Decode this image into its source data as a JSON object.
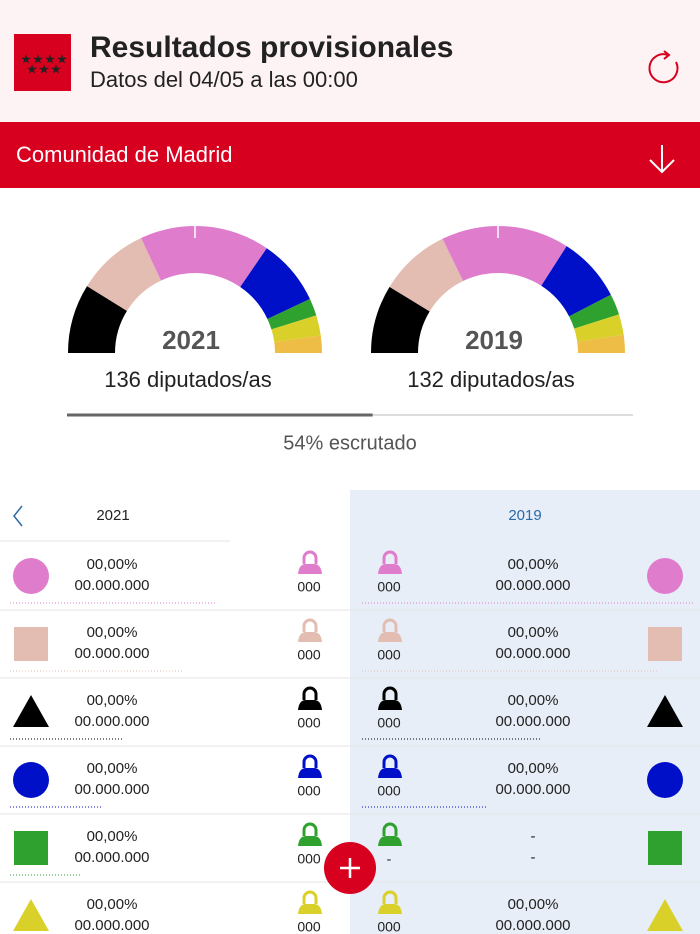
{
  "header": {
    "title": "Resultados provisionales",
    "subtitle": "Datos del 04/05 a las 00:00"
  },
  "region": "Comunidad de Madrid",
  "gauges": [
    {
      "year": "2021",
      "total_label": "136 diputados/as",
      "total": 136,
      "segments": [
        {
          "color": "#000000",
          "value": 24
        },
        {
          "color": "#e3bdb2",
          "value": 25
        },
        {
          "color": "#e07ccc",
          "value": 45
        },
        {
          "color": "#0010c8",
          "value": 23
        },
        {
          "color": "#2ea12e",
          "value": 6
        },
        {
          "color": "#d9d12a",
          "value": 7
        },
        {
          "color": "#eebd45",
          "value": 6
        }
      ]
    },
    {
      "year": "2019",
      "total_label": "132 diputados/as",
      "total": 132,
      "segments": [
        {
          "color": "#000000",
          "value": 23
        },
        {
          "color": "#e3bdb2",
          "value": 24
        },
        {
          "color": "#e07ccc",
          "value": 43
        },
        {
          "color": "#0010c8",
          "value": 22
        },
        {
          "color": "#2ea12e",
          "value": 7
        },
        {
          "color": "#d9d12a",
          "value": 7
        },
        {
          "color": "#eebd45",
          "value": 6
        }
      ]
    }
  ],
  "progress": 54,
  "progress_label": "54% escrutado",
  "table": {
    "left_year": "2021",
    "right_year": "2019",
    "rows": [
      {
        "color": "#e07ccc",
        "shape": "circle",
        "left": {
          "pct": "00,00%",
          "votes": "00.000.000",
          "seats": "000"
        },
        "right": {
          "pct": "00,00%",
          "votes": "00.000.000",
          "seats": "000"
        }
      },
      {
        "color": "#e3bdb2",
        "shape": "square",
        "left": {
          "pct": "00,00%",
          "votes": "00.000.000",
          "seats": "000"
        },
        "right": {
          "pct": "00,00%",
          "votes": "00.000.000",
          "seats": "000"
        }
      },
      {
        "color": "#000000",
        "shape": "triangle",
        "left": {
          "pct": "00,00%",
          "votes": "00.000.000",
          "seats": "000"
        },
        "right": {
          "pct": "00,00%",
          "votes": "00.000.000",
          "seats": "000"
        }
      },
      {
        "color": "#0010c8",
        "shape": "circle",
        "left": {
          "pct": "00,00%",
          "votes": "00.000.000",
          "seats": "000"
        },
        "right": {
          "pct": "00,00%",
          "votes": "00.000.000",
          "seats": "000"
        }
      },
      {
        "color": "#2ea12e",
        "shape": "square",
        "left": {
          "pct": "00,00%",
          "votes": "00.000.000",
          "seats": "000"
        },
        "right": {
          "pct": "-",
          "votes": "-",
          "seats": "-"
        }
      },
      {
        "color": "#d9d12a",
        "shape": "triangle",
        "left": {
          "pct": "00,00%",
          "votes": "00.000.000",
          "seats": "000"
        },
        "right": {
          "pct": "00,00%",
          "votes": "00.000.000",
          "seats": "000"
        }
      }
    ]
  }
}
